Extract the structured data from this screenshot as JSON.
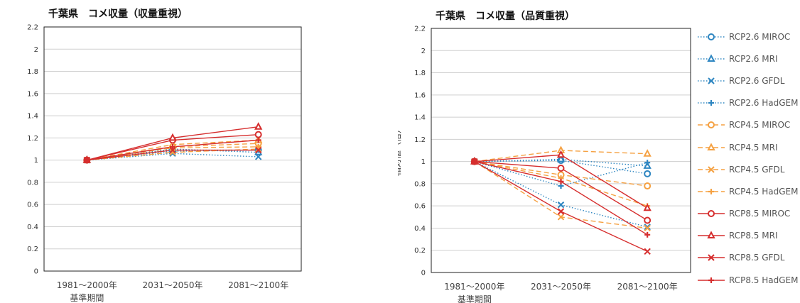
{
  "chart_data": [
    {
      "type": "line",
      "title": "千葉県　コメ収量（収量重視）",
      "xlabel": "",
      "ylabel": "",
      "x_sublabel": "基準期間",
      "categories": [
        "1981～2000年",
        "2031～2050年",
        "2081～2100年"
      ],
      "ylim": [
        0,
        2.2
      ],
      "yticks": [
        "0",
        "0.2",
        "0.4",
        "0.6",
        "0.8",
        "1",
        "1.2",
        "1.4",
        "1.6",
        "1.8",
        "2",
        "2.2"
      ],
      "grid": true,
      "legend": "none",
      "series": [
        {
          "name": "RCP2.6 MIROC",
          "values": [
            1,
            1.09,
            1.09
          ]
        },
        {
          "name": "RCP2.6 MRI",
          "values": [
            1,
            1.1,
            1.07
          ]
        },
        {
          "name": "RCP2.6 GFDL",
          "values": [
            1,
            1.06,
            1.03
          ]
        },
        {
          "name": "RCP2.6 HadGEM",
          "values": [
            1,
            1.08,
            1.09
          ]
        },
        {
          "name": "RCP4.5 MIROC",
          "values": [
            1,
            1.12,
            1.15
          ]
        },
        {
          "name": "RCP4.5 MRI",
          "values": [
            1,
            1.14,
            1.18
          ]
        },
        {
          "name": "RCP4.5 GFDL",
          "values": [
            1,
            1.07,
            1.1
          ]
        },
        {
          "name": "RCP4.5 HadGEM",
          "values": [
            1,
            1.11,
            1.12
          ]
        },
        {
          "name": "RCP8.5 MIROC",
          "values": [
            1,
            1.18,
            1.23
          ]
        },
        {
          "name": "RCP8.5 MRI",
          "values": [
            1,
            1.2,
            1.3
          ]
        },
        {
          "name": "RCP8.5 GFDL",
          "values": [
            1,
            1.09,
            1.09
          ]
        },
        {
          "name": "RCP8.5 HadGEM",
          "values": [
            1,
            1.12,
            1.18
          ]
        }
      ]
    },
    {
      "type": "line",
      "title": "千葉県　コメ収量（品質重視）",
      "xlabel": "",
      "ylabel": "相対値（倍）",
      "x_sublabel": "基準期間",
      "categories": [
        "1981～2000年",
        "2031～2050年",
        "2081～2100年"
      ],
      "ylim": [
        0,
        2.2
      ],
      "yticks": [
        "0",
        "0.2",
        "0.4",
        "0.6",
        "0.8",
        "1",
        "1.2",
        "1.4",
        "1.6",
        "1.8",
        "2",
        "2.2"
      ],
      "grid": true,
      "legend": "right",
      "series": [
        {
          "name": "RCP2.6 MIROC",
          "values": [
            1,
            1.01,
            0.89
          ]
        },
        {
          "name": "RCP2.6 MRI",
          "values": [
            1,
            1.02,
            0.96
          ]
        },
        {
          "name": "RCP2.6 GFDL",
          "values": [
            1,
            0.61,
            0.41
          ]
        },
        {
          "name": "RCP2.6 HadGEM",
          "values": [
            1,
            0.78,
            0.99
          ]
        },
        {
          "name": "RCP4.5 MIROC",
          "values": [
            1,
            0.88,
            0.78
          ]
        },
        {
          "name": "RCP4.5 MRI",
          "values": [
            1,
            1.1,
            1.07
          ]
        },
        {
          "name": "RCP4.5 GFDL",
          "values": [
            1,
            0.5,
            0.4
          ]
        },
        {
          "name": "RCP4.5 HadGEM",
          "values": [
            1,
            0.85,
            0.6
          ]
        },
        {
          "name": "RCP8.5 MIROC",
          "values": [
            1,
            0.94,
            0.47
          ]
        },
        {
          "name": "RCP8.5 MRI",
          "values": [
            1,
            1.06,
            0.58
          ]
        },
        {
          "name": "RCP8.5 GFDL",
          "values": [
            1,
            0.55,
            0.19
          ]
        },
        {
          "name": "RCP8.5 HadGEM",
          "values": [
            1,
            0.82,
            0.34
          ]
        }
      ]
    }
  ],
  "series_styles": [
    {
      "color": "#2e86c1",
      "dash": "dotted",
      "marker": "circle"
    },
    {
      "color": "#2e86c1",
      "dash": "dotted",
      "marker": "triangle"
    },
    {
      "color": "#2e86c1",
      "dash": "dotted",
      "marker": "cross"
    },
    {
      "color": "#2e86c1",
      "dash": "dotted",
      "marker": "plus"
    },
    {
      "color": "#f5a142",
      "dash": "dashed",
      "marker": "circle"
    },
    {
      "color": "#f5a142",
      "dash": "dashed",
      "marker": "triangle"
    },
    {
      "color": "#f5a142",
      "dash": "dashed",
      "marker": "cross"
    },
    {
      "color": "#f5a142",
      "dash": "dashed",
      "marker": "plus"
    },
    {
      "color": "#d62e2e",
      "dash": "solid",
      "marker": "circle"
    },
    {
      "color": "#d62e2e",
      "dash": "solid",
      "marker": "triangle"
    },
    {
      "color": "#d62e2e",
      "dash": "solid",
      "marker": "cross"
    },
    {
      "color": "#d62e2e",
      "dash": "solid",
      "marker": "plus"
    }
  ]
}
